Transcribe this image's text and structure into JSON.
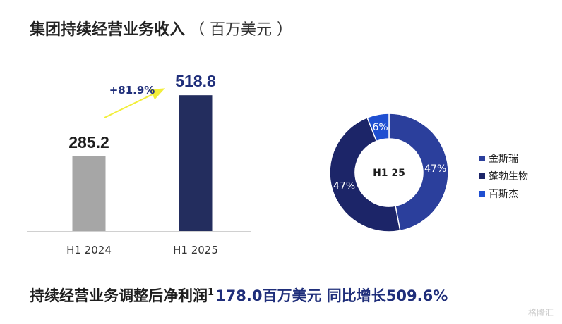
{
  "title": "集团持续经营业务收入",
  "unit": "（ 百万美元 ）",
  "chart_data": [
    {
      "type": "bar",
      "categories": [
        "H1 2024",
        "H1 2025"
      ],
      "values": [
        285.2,
        518.8
      ],
      "value_labels": [
        "285.2",
        "518.8"
      ],
      "colors": [
        "#a6a6a6",
        "#232d5e"
      ],
      "growth_label": "+81.9%",
      "ylim": [
        0,
        600
      ]
    },
    {
      "type": "pie",
      "center_label": "H1 25",
      "slices": [
        {
          "name": "金斯瑞",
          "value": 47,
          "label": "47%",
          "color": "#2b3f9c"
        },
        {
          "name": "蓬勃生物",
          "value": 47,
          "label": "47%",
          "color": "#1c2568"
        },
        {
          "name": "百斯杰",
          "value": 6,
          "label": "6%",
          "color": "#1f4fd1"
        }
      ],
      "legend_position": "right"
    }
  ],
  "footer": {
    "lead": "持续经营业务调整后净利润",
    "sup": "1",
    "metric": "178.0百万美元 同比增长509.6%"
  },
  "watermark": "格隆汇"
}
